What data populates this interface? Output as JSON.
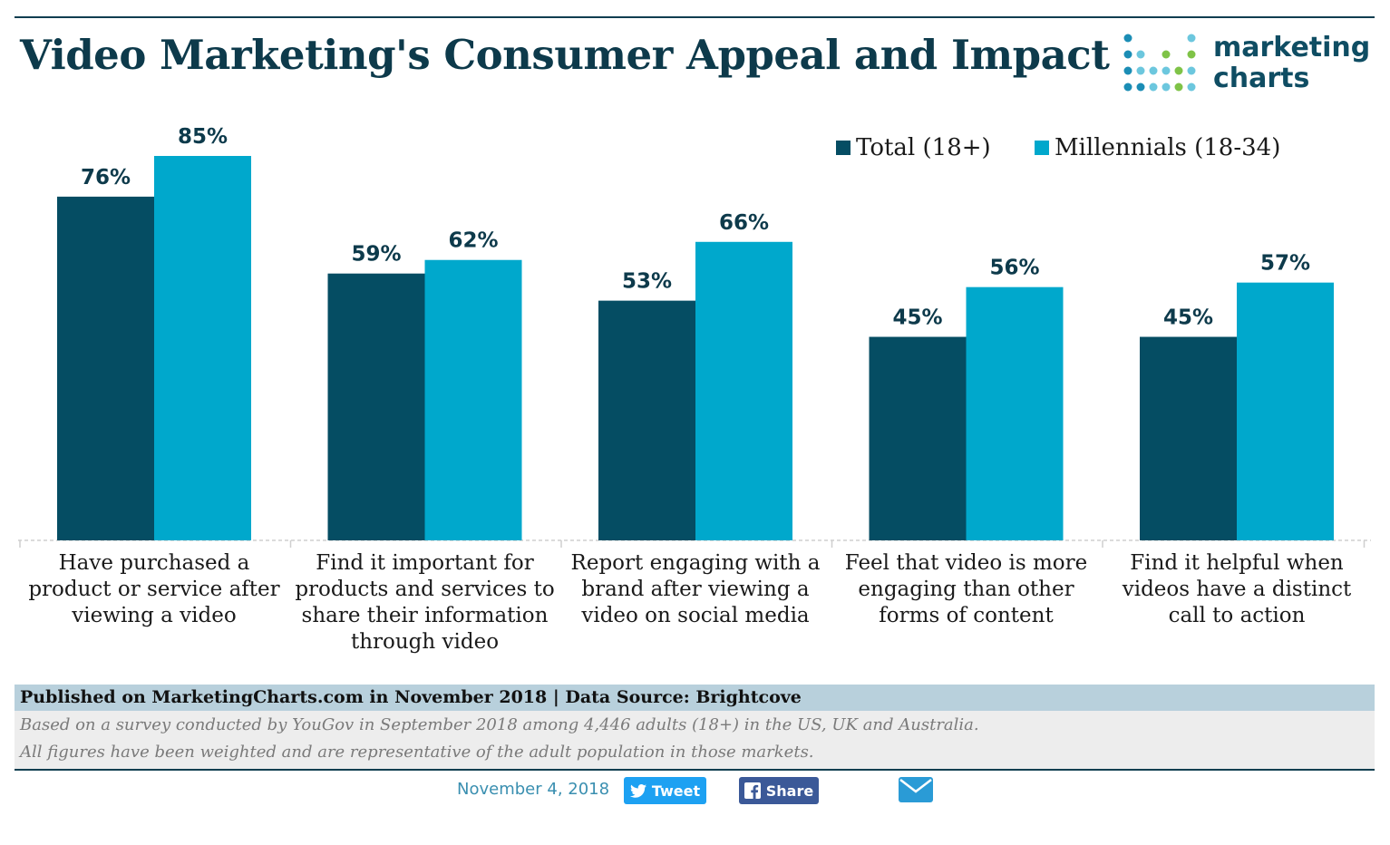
{
  "title": "Video Marketing's Consumer Appeal and Impact",
  "logo": {
    "line1": "marketing",
    "line2": "charts"
  },
  "colors": {
    "total": "#054d63",
    "millennials": "#00a8cc",
    "title": "#0d3a4b"
  },
  "chart_data": {
    "type": "bar",
    "title": "Video Marketing's Consumer Appeal and Impact",
    "categories": [
      [
        "Have purchased a",
        "product or service after",
        "viewing a video"
      ],
      [
        "Find it important for",
        "products and services to",
        "share their information",
        "through video"
      ],
      [
        "Report engaging with a",
        "brand after viewing a",
        "video on social media"
      ],
      [
        "Feel that video is more",
        "engaging than other",
        "forms of content"
      ],
      [
        "Find it helpful when",
        "videos have a distinct",
        "call to action"
      ]
    ],
    "series": [
      {
        "name": "Total (18+)",
        "values": [
          76,
          59,
          53,
          45,
          45
        ]
      },
      {
        "name": "Millennials (18-34)",
        "values": [
          85,
          62,
          66,
          56,
          57
        ]
      }
    ],
    "value_suffix": "%",
    "ylim": [
      0,
      100
    ],
    "legend_position": "top-right",
    "grid": false
  },
  "footer": {
    "source": "Published on MarketingCharts.com in November 2018 | Data Source: Brightcove",
    "note1": "Based on a survey conducted by YouGov in September 2018 among 4,446 adults (18+) in the US, UK and Australia.",
    "note2": "All figures have been weighted and are representative of the adult population in those markets."
  },
  "share": {
    "date": "November 4, 2018",
    "tweet_label": "Tweet",
    "share_label": "Share",
    "email_icon": "envelope-icon"
  }
}
